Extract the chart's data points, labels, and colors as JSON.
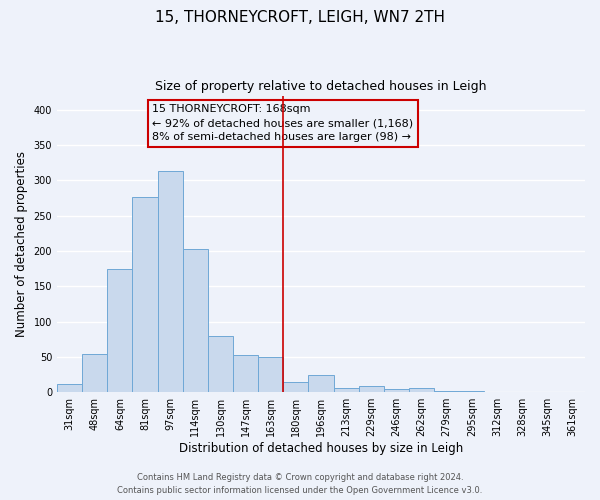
{
  "title": "15, THORNEYCROFT, LEIGH, WN7 2TH",
  "subtitle": "Size of property relative to detached houses in Leigh",
  "xlabel": "Distribution of detached houses by size in Leigh",
  "ylabel": "Number of detached properties",
  "bar_labels": [
    "31sqm",
    "48sqm",
    "64sqm",
    "81sqm",
    "97sqm",
    "114sqm",
    "130sqm",
    "147sqm",
    "163sqm",
    "180sqm",
    "196sqm",
    "213sqm",
    "229sqm",
    "246sqm",
    "262sqm",
    "279sqm",
    "295sqm",
    "312sqm",
    "328sqm",
    "345sqm",
    "361sqm"
  ],
  "bar_values": [
    11,
    54,
    175,
    277,
    313,
    203,
    80,
    52,
    50,
    14,
    25,
    6,
    9,
    4,
    6,
    2,
    2,
    1,
    1,
    0,
    1
  ],
  "bar_color": "#c9d9ed",
  "bar_edge_color": "#6fa8d6",
  "vline_x": 8.5,
  "vline_color": "#cc0000",
  "annotation_title": "15 THORNEYCROFT: 168sqm",
  "annotation_line1": "← 92% of detached houses are smaller (1,168)",
  "annotation_line2": "8% of semi-detached houses are larger (98) →",
  "annotation_box_color": "#cc0000",
  "ylim": [
    0,
    420
  ],
  "yticks": [
    0,
    50,
    100,
    150,
    200,
    250,
    300,
    350,
    400
  ],
  "title_fontsize": 11,
  "subtitle_fontsize": 9,
  "axis_label_fontsize": 8.5,
  "tick_fontsize": 7,
  "annot_fontsize": 8,
  "footer_line1": "Contains HM Land Registry data © Crown copyright and database right 2024.",
  "footer_line2": "Contains public sector information licensed under the Open Government Licence v3.0.",
  "bg_color": "#eef2fa",
  "grid_color": "#ffffff"
}
